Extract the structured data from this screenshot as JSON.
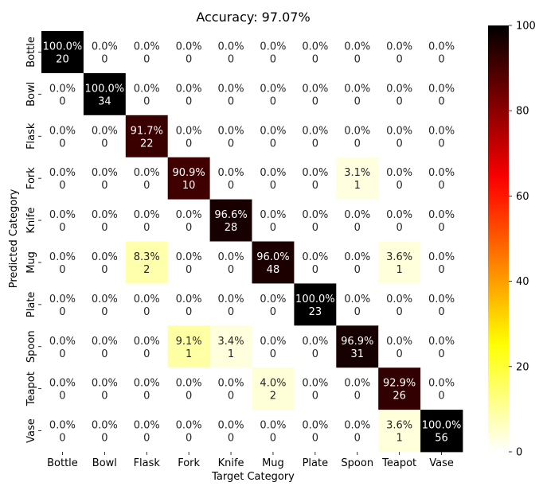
{
  "chart_data": {
    "type": "heatmap",
    "title": "Accuracy: 97.07%",
    "xlabel": "Target Category",
    "ylabel": "Predicted Category",
    "x_categories": [
      "Bottle",
      "Bowl",
      "Flask",
      "Fork",
      "Knife",
      "Mug",
      "Plate",
      "Spoon",
      "Teapot",
      "Vase"
    ],
    "y_categories": [
      "Bottle",
      "Bowl",
      "Flask",
      "Fork",
      "Knife",
      "Mug",
      "Plate",
      "Spoon",
      "Teapot",
      "Vase"
    ],
    "percent_labels": [
      [
        "100.0%",
        "0.0%",
        "0.0%",
        "0.0%",
        "0.0%",
        "0.0%",
        "0.0%",
        "0.0%",
        "0.0%",
        "0.0%"
      ],
      [
        "0.0%",
        "100.0%",
        "0.0%",
        "0.0%",
        "0.0%",
        "0.0%",
        "0.0%",
        "0.0%",
        "0.0%",
        "0.0%"
      ],
      [
        "0.0%",
        "0.0%",
        "91.7%",
        "0.0%",
        "0.0%",
        "0.0%",
        "0.0%",
        "0.0%",
        "0.0%",
        "0.0%"
      ],
      [
        "0.0%",
        "0.0%",
        "0.0%",
        "90.9%",
        "0.0%",
        "0.0%",
        "0.0%",
        "3.1%",
        "0.0%",
        "0.0%"
      ],
      [
        "0.0%",
        "0.0%",
        "0.0%",
        "0.0%",
        "96.6%",
        "0.0%",
        "0.0%",
        "0.0%",
        "0.0%",
        "0.0%"
      ],
      [
        "0.0%",
        "0.0%",
        "8.3%",
        "0.0%",
        "0.0%",
        "96.0%",
        "0.0%",
        "0.0%",
        "3.6%",
        "0.0%"
      ],
      [
        "0.0%",
        "0.0%",
        "0.0%",
        "0.0%",
        "0.0%",
        "0.0%",
        "100.0%",
        "0.0%",
        "0.0%",
        "0.0%"
      ],
      [
        "0.0%",
        "0.0%",
        "0.0%",
        "9.1%",
        "3.4%",
        "0.0%",
        "0.0%",
        "96.9%",
        "0.0%",
        "0.0%"
      ],
      [
        "0.0%",
        "0.0%",
        "0.0%",
        "0.0%",
        "0.0%",
        "4.0%",
        "0.0%",
        "0.0%",
        "92.9%",
        "0.0%"
      ],
      [
        "0.0%",
        "0.0%",
        "0.0%",
        "0.0%",
        "0.0%",
        "0.0%",
        "0.0%",
        "0.0%",
        "3.6%",
        "100.0%"
      ]
    ],
    "counts": [
      [
        20,
        0,
        0,
        0,
        0,
        0,
        0,
        0,
        0,
        0
      ],
      [
        0,
        34,
        0,
        0,
        0,
        0,
        0,
        0,
        0,
        0
      ],
      [
        0,
        0,
        22,
        0,
        0,
        0,
        0,
        0,
        0,
        0
      ],
      [
        0,
        0,
        0,
        10,
        0,
        0,
        0,
        1,
        0,
        0
      ],
      [
        0,
        0,
        0,
        0,
        28,
        0,
        0,
        0,
        0,
        0
      ],
      [
        0,
        0,
        2,
        0,
        0,
        48,
        0,
        0,
        1,
        0
      ],
      [
        0,
        0,
        0,
        0,
        0,
        0,
        23,
        0,
        0,
        0
      ],
      [
        0,
        0,
        0,
        1,
        1,
        0,
        0,
        31,
        0,
        0
      ],
      [
        0,
        0,
        0,
        0,
        0,
        2,
        0,
        0,
        26,
        0
      ],
      [
        0,
        0,
        0,
        0,
        0,
        0,
        0,
        0,
        1,
        56
      ]
    ],
    "colorbar": {
      "colormap": "hot_r",
      "range": [
        0,
        100
      ],
      "ticks": [
        0,
        20,
        40,
        60,
        80,
        100
      ]
    }
  }
}
